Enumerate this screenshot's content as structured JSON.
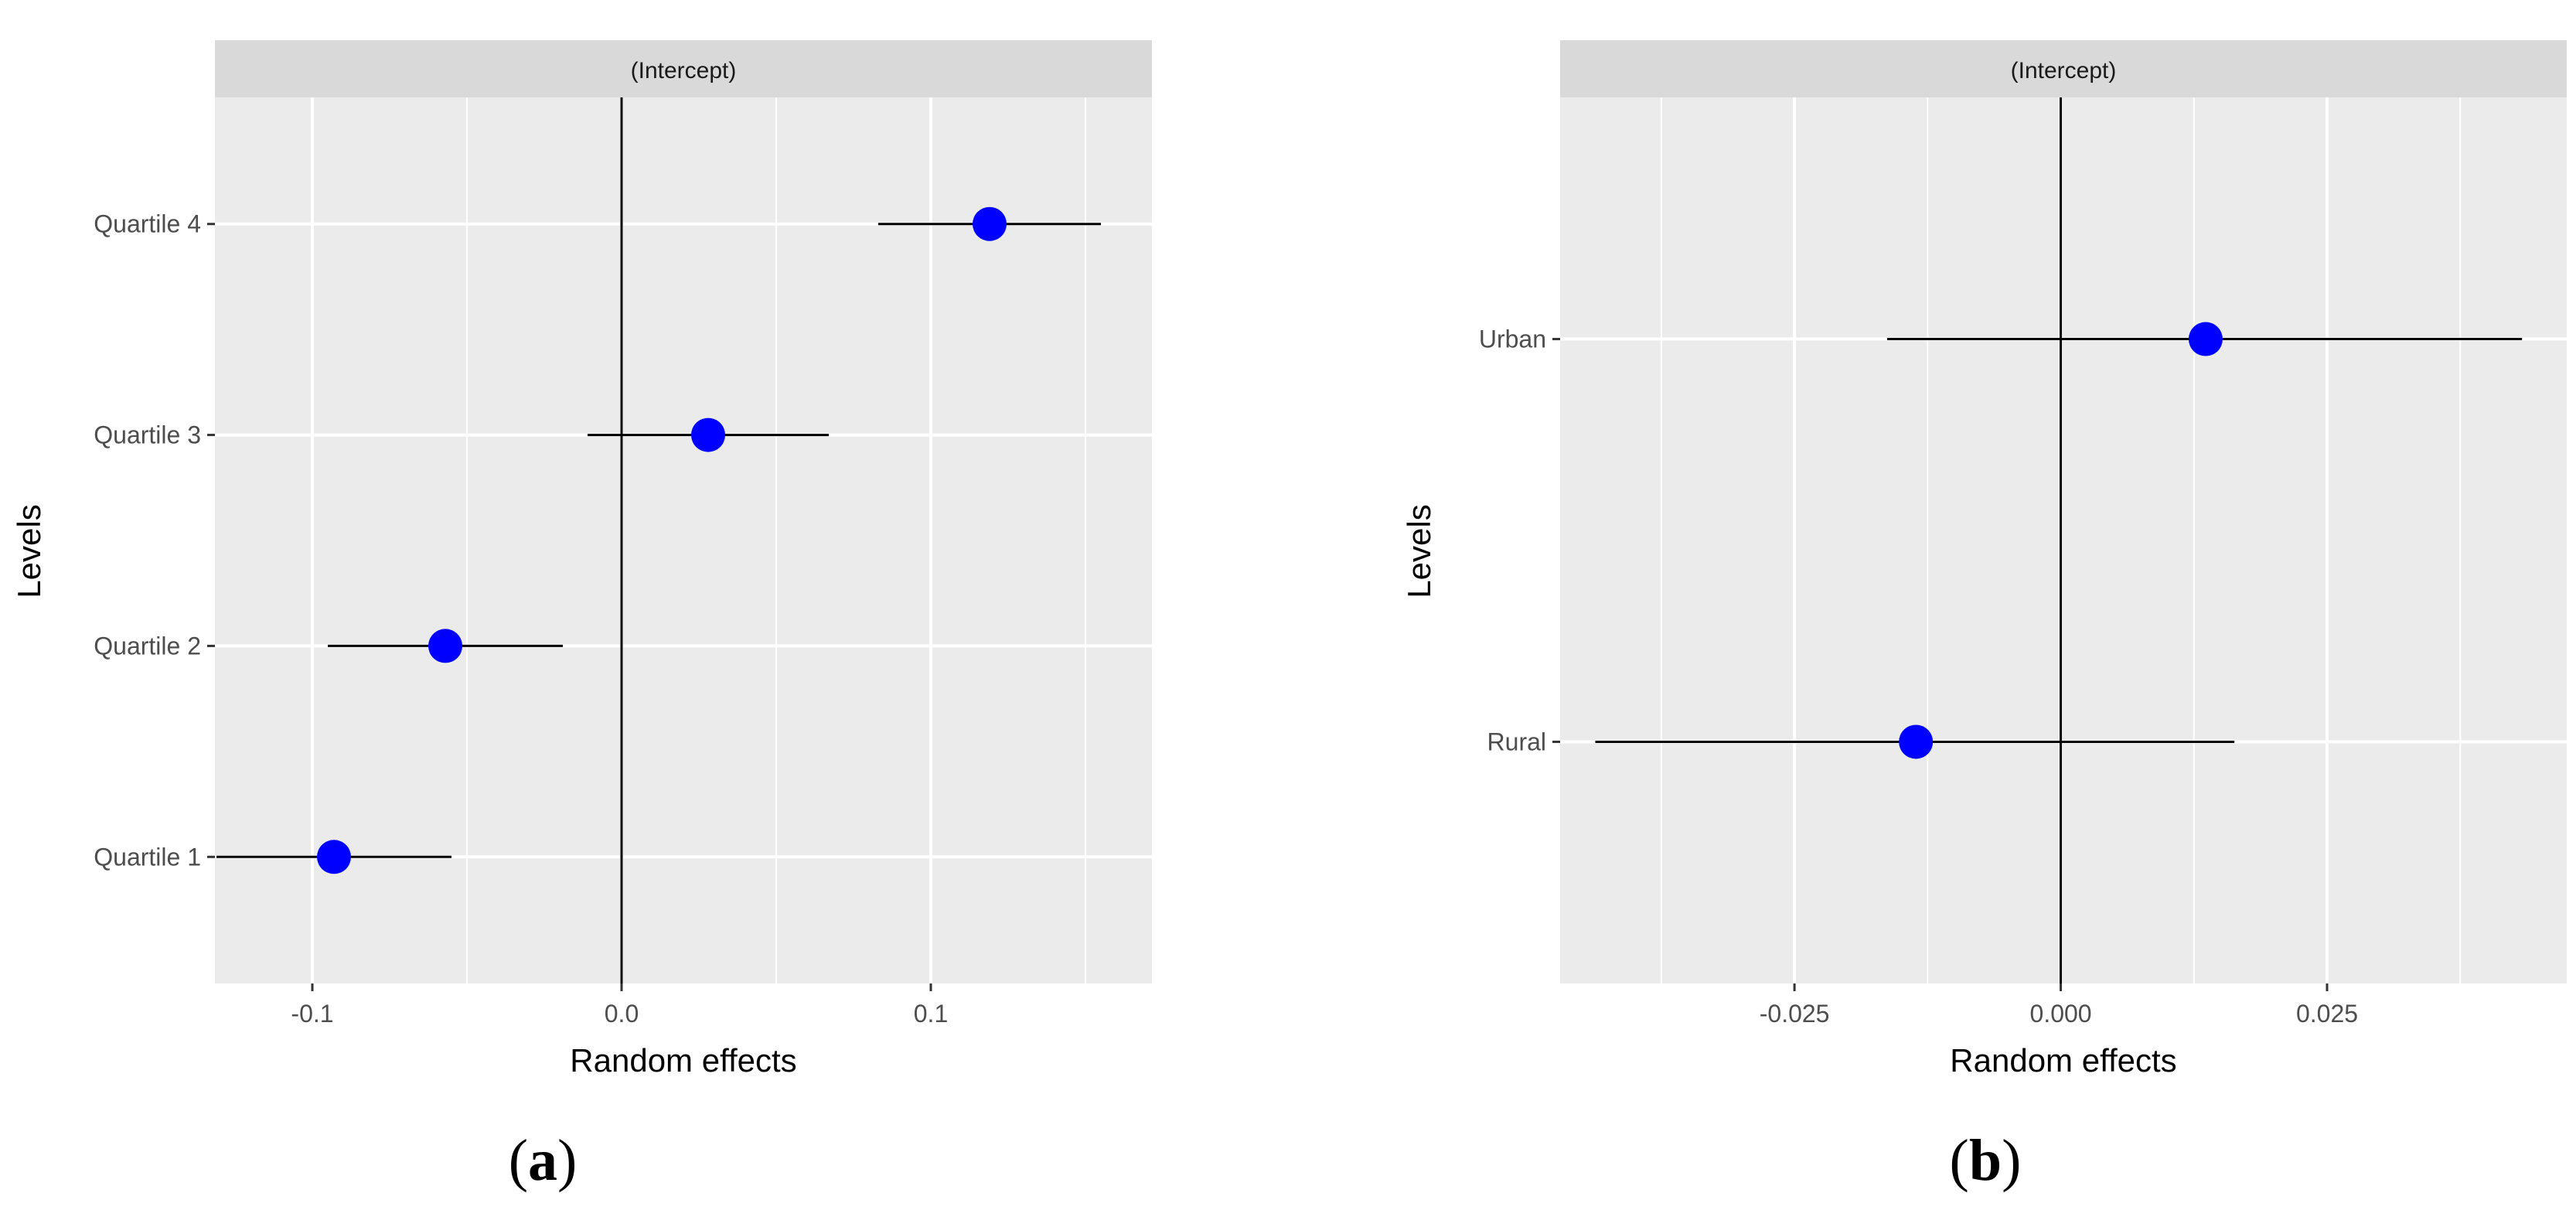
{
  "colors": {
    "panel_background": "#ebebeb",
    "strip_background": "#d9d9d9",
    "grid": "#ffffff",
    "point": "#0000ff",
    "error_bar": "#000000",
    "zero_line": "#000000",
    "tick_text": "#4d4d4d",
    "axis_text": "#000000"
  },
  "chart_data": [
    {
      "type": "scatter",
      "panel_tag": "a",
      "strip": "(Intercept)",
      "xlabel": "Random effects",
      "ylabel": "Levels",
      "xlim": [
        -0.1315,
        0.1715
      ],
      "x_ticks": [
        -0.1,
        0.0,
        0.1
      ],
      "x_tick_labels": [
        "-0.1",
        "0.0",
        "0.1"
      ],
      "x_minor_ticks": [
        -0.05,
        0.05,
        0.15
      ],
      "categories": [
        "Quartile 1",
        "Quartile 2",
        "Quartile 3",
        "Quartile 4"
      ],
      "points": [
        {
          "level": "Quartile 1",
          "estimate": -0.093,
          "lower": -0.131,
          "upper": -0.055
        },
        {
          "level": "Quartile 2",
          "estimate": -0.057,
          "lower": -0.095,
          "upper": -0.019
        },
        {
          "level": "Quartile 3",
          "estimate": 0.028,
          "lower": -0.011,
          "upper": 0.067
        },
        {
          "level": "Quartile 4",
          "estimate": 0.119,
          "lower": 0.083,
          "upper": 0.155
        }
      ],
      "zero_line": 0,
      "grid": true
    },
    {
      "type": "scatter",
      "panel_tag": "b",
      "strip": "(Intercept)",
      "xlabel": "Random effects",
      "ylabel": "Levels",
      "xlim": [
        -0.047,
        0.0475
      ],
      "x_ticks": [
        -0.025,
        0.0,
        0.025
      ],
      "x_tick_labels": [
        "-0.025",
        "0.000",
        "0.025"
      ],
      "x_minor_ticks": [
        -0.0375,
        -0.0125,
        0.0125,
        0.0375
      ],
      "categories": [
        "Rural",
        "Urban"
      ],
      "points": [
        {
          "level": "Rural",
          "estimate": -0.0136,
          "lower": -0.0437,
          "upper": 0.0163
        },
        {
          "level": "Urban",
          "estimate": 0.0136,
          "lower": -0.0163,
          "upper": 0.0433
        }
      ],
      "zero_line": 0,
      "grid": true
    }
  ]
}
